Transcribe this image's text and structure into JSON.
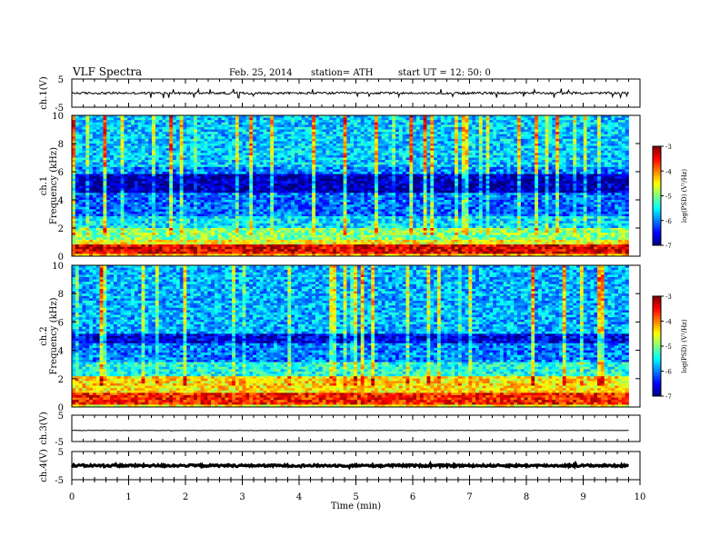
{
  "header": {
    "title": "VLF  Spectra",
    "date": "Feb. 25, 2014",
    "station": "station= ATH",
    "start_ut": "start  UT  =   12: 50: 0"
  },
  "chart_data": [
    {
      "type": "line",
      "ylabel": "ch.1(V)",
      "ylim": [
        -5,
        5
      ],
      "yticks": [
        "5",
        "-5"
      ],
      "xlim": [
        0,
        10
      ],
      "waveform": {
        "baseline": 0,
        "noise_amplitude": 0.4,
        "spike_amplitude": 1.4,
        "duration_min": 9.8
      },
      "color": "#000000"
    },
    {
      "type": "heatmap",
      "ylabel": "Frequency  (kHz)",
      "channel": "ch.1",
      "ylim": [
        0,
        10
      ],
      "xlim": [
        0,
        10
      ],
      "yticks": [
        0,
        2,
        4,
        6,
        8,
        10
      ],
      "duration_min": 9.8,
      "colorbar": {
        "label": "log(PSD) (V²/Hz)",
        "range": [
          -7,
          -3
        ],
        "ticks": [
          -3,
          -4,
          -5,
          -6,
          -7
        ]
      },
      "bands": [
        {
          "kHz": [
            0.0,
            0.2
          ],
          "level": -4.2
        },
        {
          "kHz": [
            0.2,
            0.8
          ],
          "level": -3.4
        },
        {
          "kHz": [
            0.8,
            1.2
          ],
          "level": -4.5
        },
        {
          "kHz": [
            1.2,
            2.0
          ],
          "level": -5.0
        },
        {
          "kHz": [
            2.0,
            2.8
          ],
          "level": -5.6
        },
        {
          "kHz": [
            2.8,
            4.5
          ],
          "level": -6.1
        },
        {
          "kHz": [
            4.5,
            5.8
          ],
          "level": -6.8
        },
        {
          "kHz": [
            5.8,
            6.4
          ],
          "level": -6.0
        },
        {
          "kHz": [
            6.4,
            10.0
          ],
          "level": -5.7
        }
      ]
    },
    {
      "type": "heatmap",
      "ylabel": "Frequency  (kHz)",
      "channel": "ch.2",
      "ylim": [
        0,
        10
      ],
      "xlim": [
        0,
        10
      ],
      "yticks": [
        0,
        2,
        4,
        6,
        8,
        10
      ],
      "duration_min": 9.8,
      "colorbar": {
        "label": "log(PSD) (V²/Hz)",
        "range": [
          -7,
          -3
        ],
        "ticks": [
          -3,
          -4,
          -5,
          -6,
          -7
        ]
      },
      "bands": [
        {
          "kHz": [
            0.0,
            0.2
          ],
          "level": -4.5
        },
        {
          "kHz": [
            0.2,
            1.0
          ],
          "level": -3.6
        },
        {
          "kHz": [
            1.0,
            2.2
          ],
          "level": -4.4
        },
        {
          "kHz": [
            2.2,
            3.2
          ],
          "level": -5.4
        },
        {
          "kHz": [
            3.2,
            4.5
          ],
          "level": -6.0
        },
        {
          "kHz": [
            4.5,
            5.2
          ],
          "level": -6.6
        },
        {
          "kHz": [
            5.2,
            10.0
          ],
          "level": -5.8
        }
      ]
    },
    {
      "type": "line",
      "ylabel": "ch.3(V)",
      "ylim": [
        -5,
        5
      ],
      "yticks": [
        "5",
        "-5"
      ],
      "xlim": [
        0,
        10
      ],
      "waveform": {
        "baseline": -0.8,
        "noise_amplitude": 0.08,
        "spike_amplitude": 0.1,
        "duration_min": 9.8
      },
      "color": "#000000"
    },
    {
      "type": "line",
      "ylabel": "ch.4(V)",
      "ylim": [
        -5,
        5
      ],
      "yticks": [
        "5",
        "-5"
      ],
      "xlim": [
        0,
        10
      ],
      "xlabel": "Time  (min)",
      "xticks": [
        0,
        1,
        2,
        3,
        4,
        5,
        6,
        7,
        8,
        9,
        10
      ],
      "waveform": {
        "baseline": 0,
        "noise_amplitude": 0.35,
        "spike_amplitude": 0.35,
        "duration_min": 9.8
      },
      "color": "#000000"
    }
  ]
}
